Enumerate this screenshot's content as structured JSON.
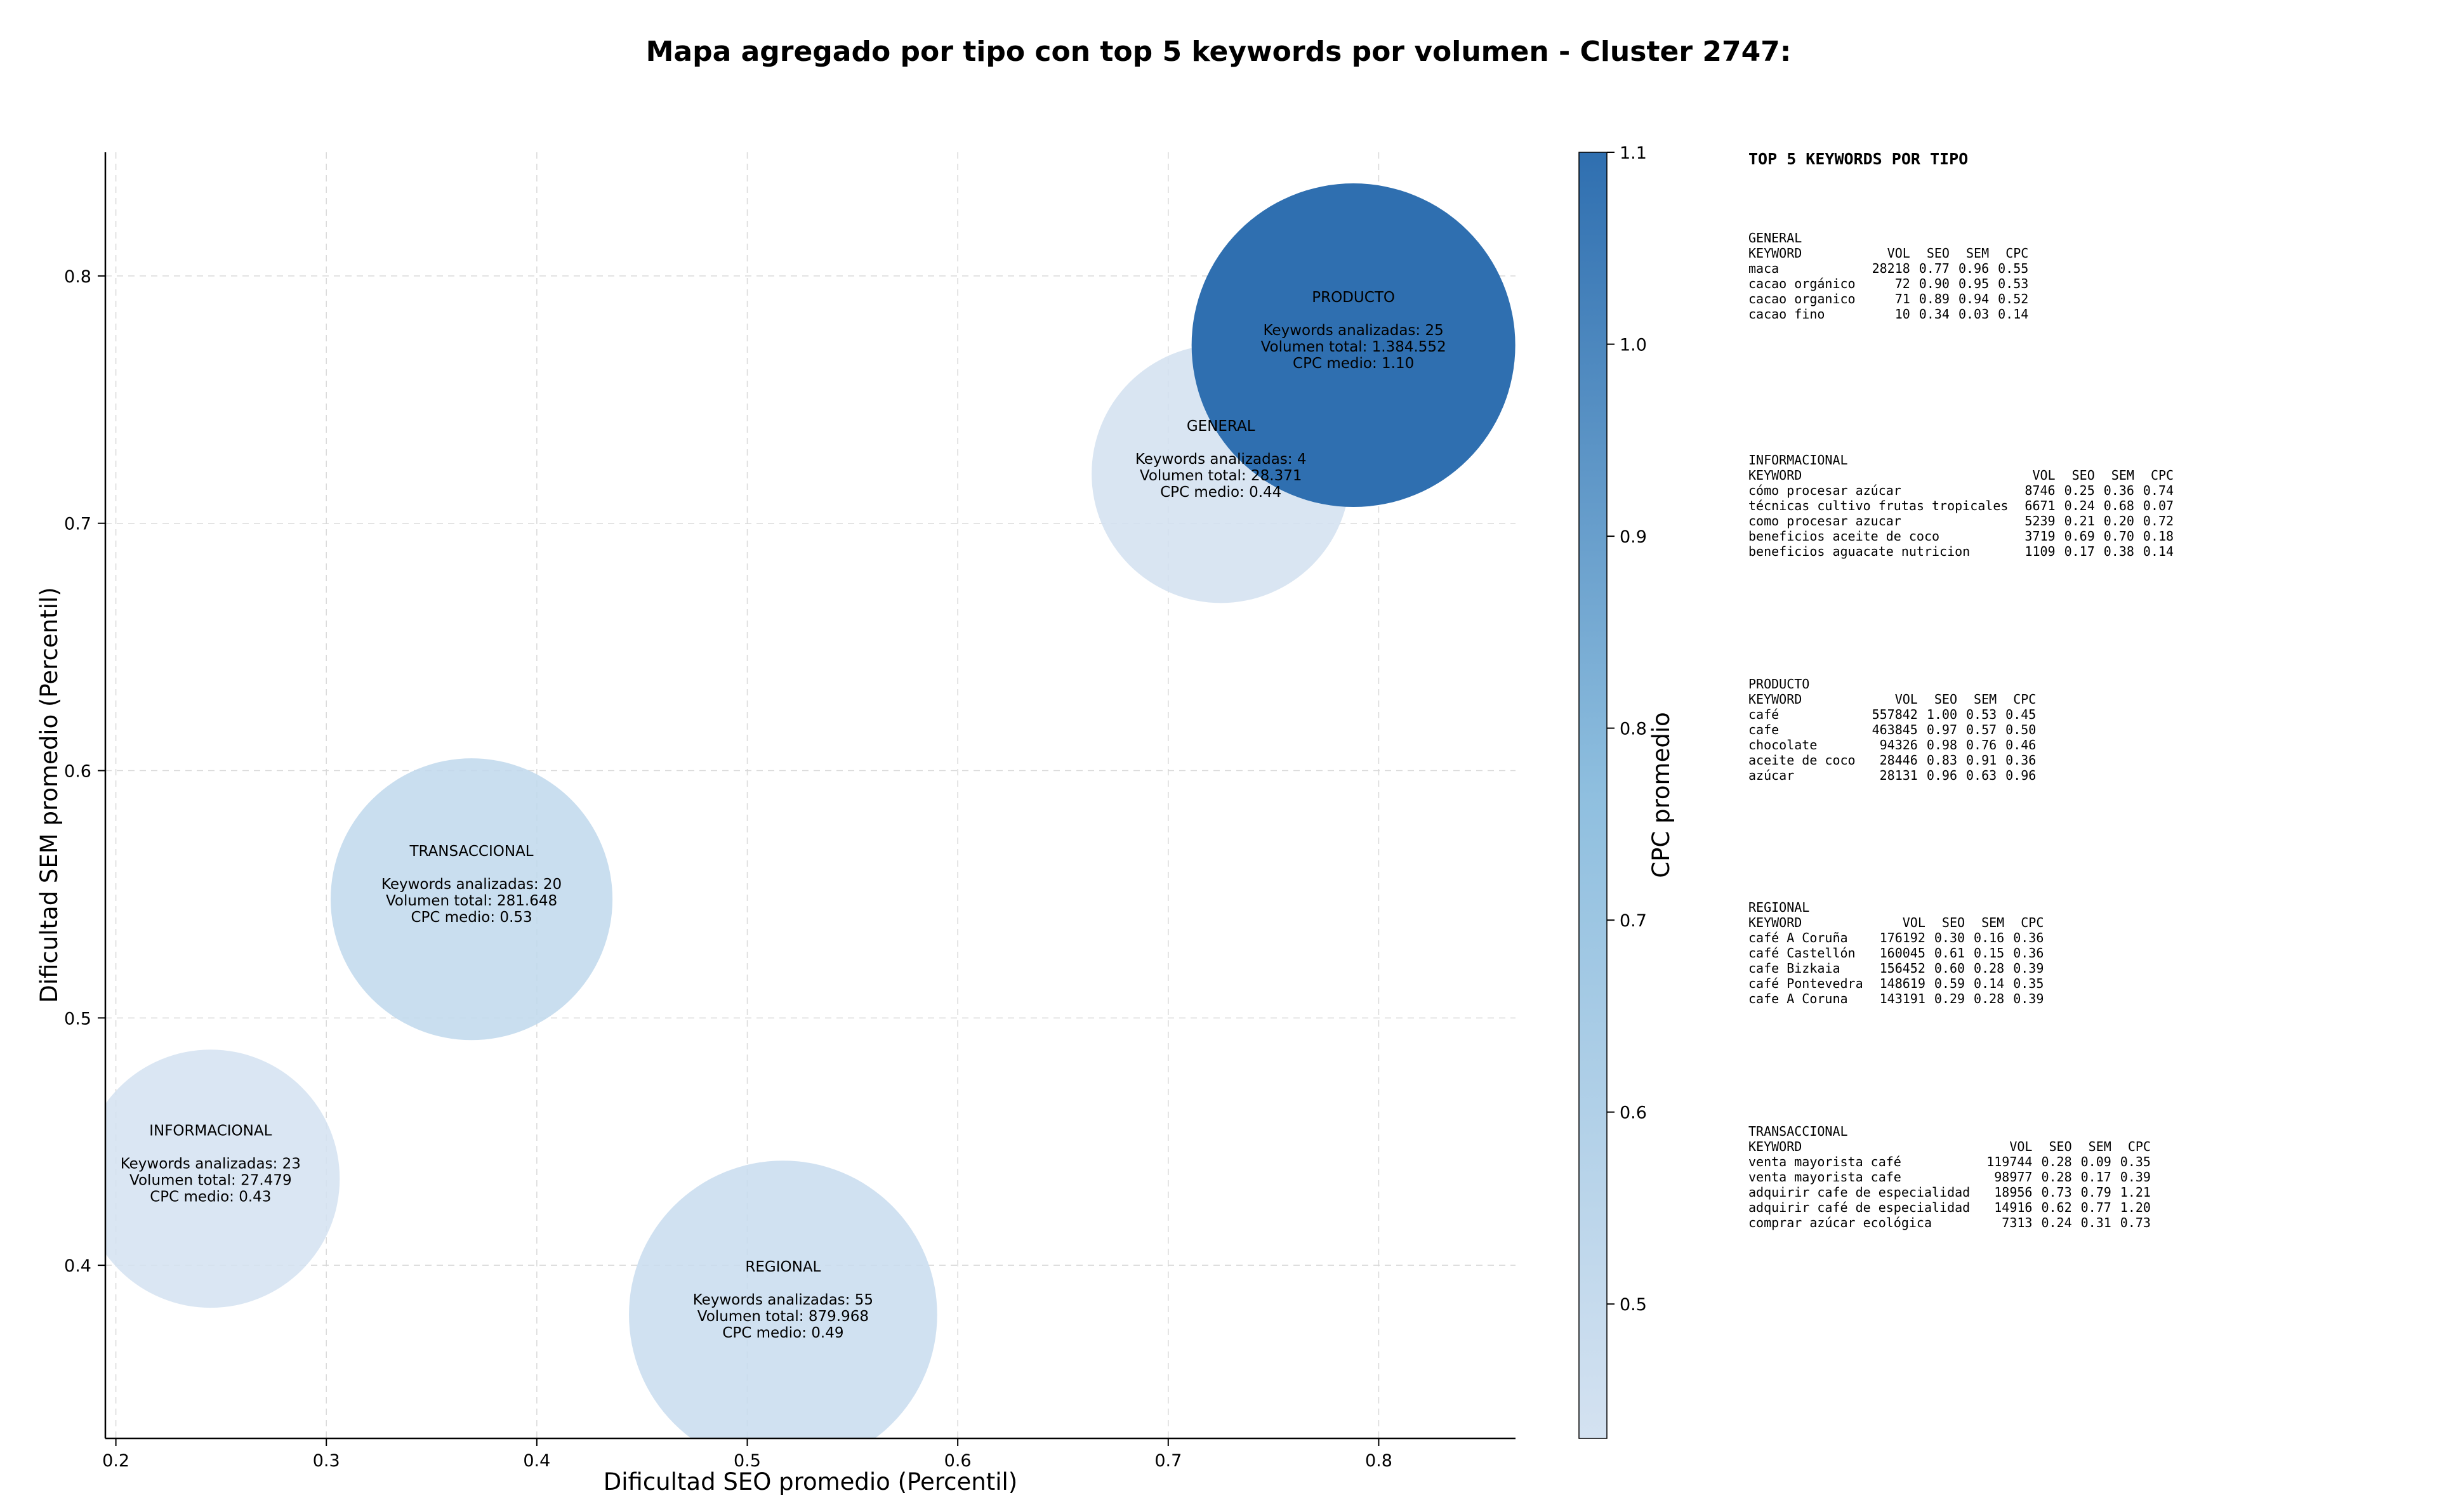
{
  "chart_data": {
    "type": "bubble",
    "title": "Mapa agregado por tipo con top 5 keywords por volumen - Cluster 2747:",
    "xlabel": "Dificultad SEO promedio (Percentil)",
    "ylabel": "Dificultad SEM promedio (Percentil)",
    "xlim": [
      0.195,
      0.865
    ],
    "ylim": [
      0.33,
      0.85
    ],
    "xticks": [
      "0.2",
      "0.3",
      "0.4",
      "0.5",
      "0.6",
      "0.7",
      "0.8"
    ],
    "xtick_values": [
      0.2,
      0.3,
      0.4,
      0.5,
      0.6,
      0.7,
      0.8
    ],
    "yticks": [
      "0.4",
      "0.5",
      "0.6",
      "0.7",
      "0.8"
    ],
    "ytick_values": [
      0.4,
      0.5,
      0.6,
      0.7,
      0.8
    ],
    "grid": true,
    "colorbar": {
      "label": "CPC promedio",
      "min": 0.43,
      "max": 1.1,
      "ticks": [
        "0.5",
        "0.6",
        "0.7",
        "0.8",
        "0.9",
        "1.0",
        "1.1"
      ],
      "tick_values": [
        0.5,
        0.6,
        0.7,
        0.8,
        0.9,
        1.0,
        1.1
      ],
      "color_low": "#d4e2f1",
      "color_high": "#2f6fb0"
    },
    "bubbles": [
      {
        "name": "INFORMACIONAL",
        "x": 0.245,
        "y": 0.435,
        "cpc": 0.43,
        "label_keywords": "Keywords analizadas: 23",
        "label_volume": "Volumen total: 27.479",
        "label_cpc": "CPC medio: 0.43"
      },
      {
        "name": "TRANSACCIONAL",
        "x": 0.369,
        "y": 0.548,
        "cpc": 0.53,
        "label_keywords": "Keywords analizadas: 20",
        "label_volume": "Volumen total: 281.648",
        "label_cpc": "CPC medio: 0.53"
      },
      {
        "name": "REGIONAL",
        "x": 0.517,
        "y": 0.38,
        "cpc": 0.49,
        "label_keywords": "Keywords analizadas: 55",
        "label_volume": "Volumen total: 879.968",
        "label_cpc": "CPC medio: 0.49"
      },
      {
        "name": "GENERAL",
        "x": 0.725,
        "y": 0.72,
        "cpc": 0.44,
        "label_keywords": "Keywords analizadas: 4",
        "label_volume": "Volumen total: 28.371",
        "label_cpc": "CPC medio: 0.44"
      },
      {
        "name": "PRODUCTO",
        "x": 0.788,
        "y": 0.772,
        "cpc": 1.1,
        "label_keywords": "Keywords analizadas: 25",
        "label_volume": "Volumen total: 1.384.552",
        "label_cpc": "CPC medio: 1.10"
      }
    ]
  },
  "keywords_panel": {
    "title": "TOP 5 KEYWORDS POR TIPO",
    "columns": [
      "KEYWORD",
      "VOL",
      "SEO",
      "SEM",
      "CPC"
    ],
    "groups": [
      {
        "name": "GENERAL",
        "rows": [
          [
            "maca",
            "28218",
            "0.77",
            "0.96",
            "0.55"
          ],
          [
            "cacao orgánico",
            "72",
            "0.90",
            "0.95",
            "0.53"
          ],
          [
            "cacao organico",
            "71",
            "0.89",
            "0.94",
            "0.52"
          ],
          [
            "cacao fino",
            "10",
            "0.34",
            "0.03",
            "0.14"
          ]
        ]
      },
      {
        "name": "INFORMACIONAL",
        "rows": [
          [
            "cómo procesar azúcar",
            "8746",
            "0.25",
            "0.36",
            "0.74"
          ],
          [
            "técnicas cultivo frutas tropicales",
            "6671",
            "0.24",
            "0.68",
            "0.07"
          ],
          [
            "como procesar azucar",
            "5239",
            "0.21",
            "0.20",
            "0.72"
          ],
          [
            "beneficios aceite de coco",
            "3719",
            "0.69",
            "0.70",
            "0.18"
          ],
          [
            "beneficios aguacate nutricion",
            "1109",
            "0.17",
            "0.38",
            "0.14"
          ]
        ]
      },
      {
        "name": "PRODUCTO",
        "rows": [
          [
            "café",
            "557842",
            "1.00",
            "0.53",
            "0.45"
          ],
          [
            "cafe",
            "463845",
            "0.97",
            "0.57",
            "0.50"
          ],
          [
            "chocolate",
            "94326",
            "0.98",
            "0.76",
            "0.46"
          ],
          [
            "aceite de coco",
            "28446",
            "0.83",
            "0.91",
            "0.36"
          ],
          [
            "azúcar",
            "28131",
            "0.96",
            "0.63",
            "0.96"
          ]
        ]
      },
      {
        "name": "REGIONAL",
        "rows": [
          [
            "café A Coruña",
            "176192",
            "0.30",
            "0.16",
            "0.36"
          ],
          [
            "café Castellón",
            "160045",
            "0.61",
            "0.15",
            "0.36"
          ],
          [
            "cafe Bizkaia",
            "156452",
            "0.60",
            "0.28",
            "0.39"
          ],
          [
            "café Pontevedra",
            "148619",
            "0.59",
            "0.14",
            "0.35"
          ],
          [
            "cafe A Coruna",
            "143191",
            "0.29",
            "0.28",
            "0.39"
          ]
        ]
      },
      {
        "name": "TRANSACCIONAL",
        "rows": [
          [
            "venta mayorista café",
            "119744",
            "0.28",
            "0.09",
            "0.35"
          ],
          [
            "venta mayorista cafe",
            "98977",
            "0.28",
            "0.17",
            "0.39"
          ],
          [
            "adquirir cafe de especialidad",
            "18956",
            "0.73",
            "0.79",
            "1.21"
          ],
          [
            "adquirir café de especialidad",
            "14916",
            "0.62",
            "0.77",
            "1.20"
          ],
          [
            "comprar azúcar ecológica",
            "7313",
            "0.24",
            "0.31",
            "0.73"
          ]
        ]
      }
    ]
  }
}
